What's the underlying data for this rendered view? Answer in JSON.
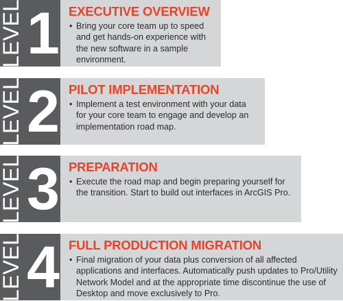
{
  "levels": [
    {
      "word": "LEVEL",
      "number": "1",
      "title": "EXECUTIVE OVERVIEW",
      "bullet": "•",
      "text": "Bring your core team up to speed and get hands-on experience with the new software in a sample environment."
    },
    {
      "word": "LEVEL",
      "number": "2",
      "title": "PILOT IMPLEMENTATION",
      "bullet": "•",
      "text": "Implement a test environment with your data for your core team to engage and develop an implementation road map."
    },
    {
      "word": "LEVEL",
      "number": "3",
      "title": "PREPARATION",
      "bullet": "•",
      "text": "Execute the road map and begin preparing yourself for the transition. Start to build out interfaces in ArcGIS Pro."
    },
    {
      "word": "LEVEL",
      "number": "4",
      "title": "FULL PRODUCTION MIGRATION",
      "bullet": "•",
      "text": "Final migration of your data plus conversion of all affected applications and interfaces. Automatically push updates to Pro/Utility Network Model and at the appropriate time discontinue the use of Desktop and move exclusively to Pro."
    }
  ],
  "colors": {
    "badge": "#595b5d",
    "panel": "#d5d6d7",
    "title": "#e8442a",
    "text": "#2b2b2b"
  }
}
